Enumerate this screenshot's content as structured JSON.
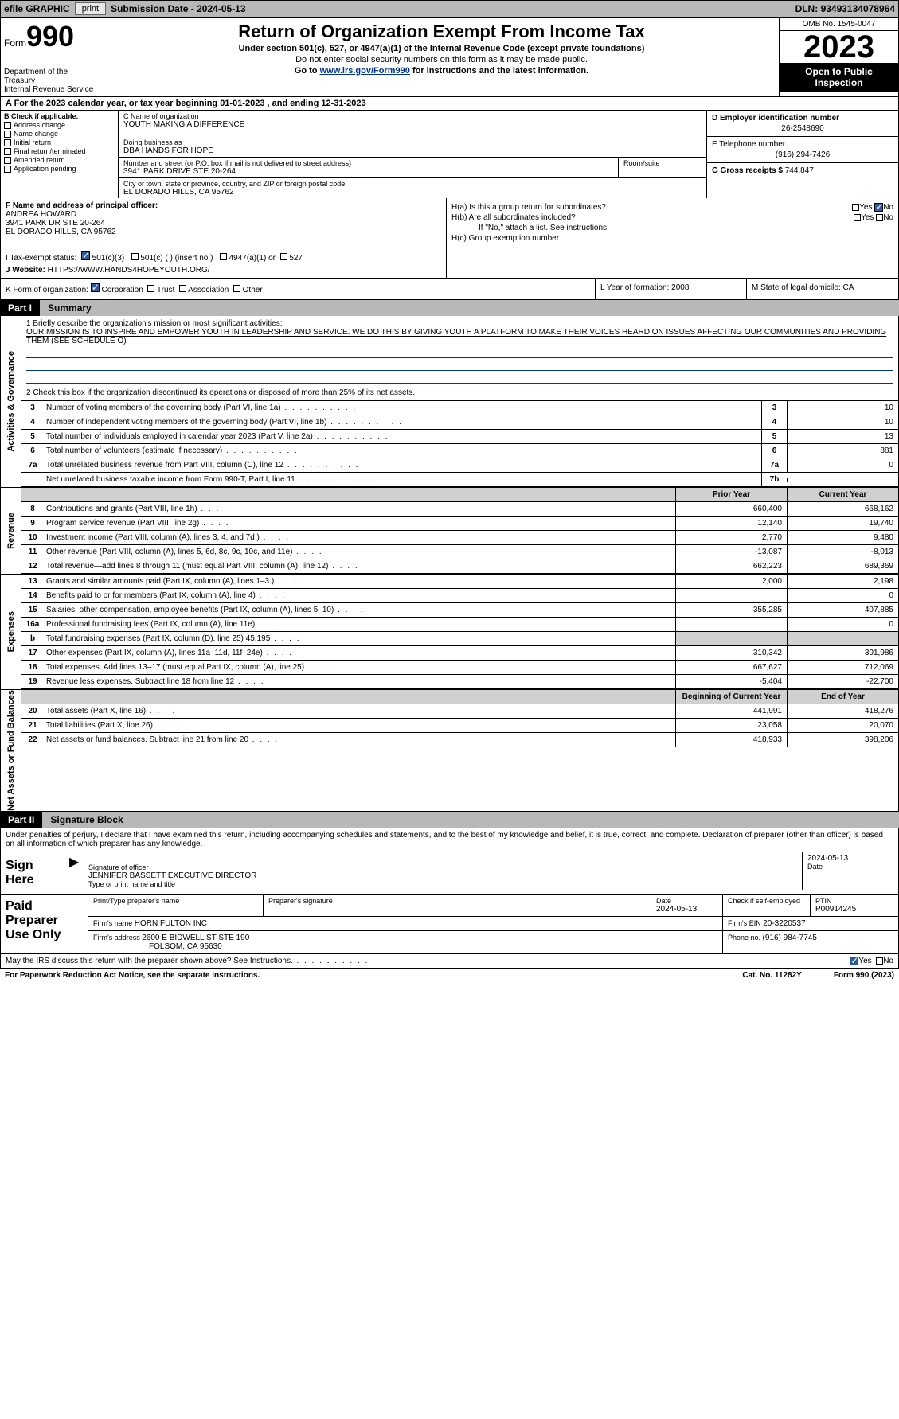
{
  "topbar": {
    "efile": "efile GRAPHIC",
    "print": "print",
    "sub_label": "Submission Date - ",
    "sub_date": "2024-05-13",
    "dln_label": "DLN: ",
    "dln": "93493134078964"
  },
  "header": {
    "form_word": "Form",
    "form_num": "990",
    "title": "Return of Organization Exempt From Income Tax",
    "subtitle": "Under section 501(c), 527, or 4947(a)(1) of the Internal Revenue Code (except private foundations)",
    "ssn_note": "Do not enter social security numbers on this form as it may be made public.",
    "goto_pre": "Go to ",
    "goto_link": "www.irs.gov/Form990",
    "goto_post": " for instructions and the latest information.",
    "omb": "OMB No. 1545-0047",
    "year": "2023",
    "open": "Open to Public Inspection",
    "dept": "Department of the Treasury",
    "irs": "Internal Revenue Service"
  },
  "period": {
    "text": "A   For the 2023 calendar year, or tax year beginning 01-01-2023    , and ending 12-31-2023"
  },
  "col_b": {
    "label": "B Check if applicable:",
    "addr": "Address change",
    "name": "Name change",
    "initial": "Initial return",
    "final": "Final return/terminated",
    "amended": "Amended return",
    "app": "Application pending"
  },
  "col_c": {
    "name_lbl": "C Name of organization",
    "name": "YOUTH MAKING A DIFFERENCE",
    "dba_lbl": "Doing business as",
    "dba": "DBA HANDS FOR HOPE",
    "street_lbl": "Number and street (or P.O. box if mail is not delivered to street address)",
    "street": "3941 PARK DRIVE STE 20-264",
    "suite_lbl": "Room/suite",
    "city_lbl": "City or town, state or province, country, and ZIP or foreign postal code",
    "city": "EL DORADO HILLS, CA   95762"
  },
  "col_de": {
    "d_lbl": "D Employer identification number",
    "d_val": "26-2548690",
    "e_lbl": "E Telephone number",
    "e_val": "(916) 294-7426",
    "g_lbl": "G Gross receipts $ ",
    "g_val": "744,847"
  },
  "fh": {
    "f_lbl": "F  Name and address of principal officer:",
    "f_name": "ANDREA HOWARD",
    "f_addr1": "3941 PARK DR STE 20-264",
    "f_addr2": "EL DORADO HILLS, CA  95762",
    "ha": "H(a)  Is this a group return for subordinates?",
    "hb": "H(b)  Are all subordinates included?",
    "hb_note": "If \"No,\" attach a list. See instructions.",
    "hc": "H(c)  Group exemption number  ",
    "yes": "Yes",
    "no": "No"
  },
  "ijk": {
    "i_lbl": "I    Tax-exempt status:",
    "i_501c3": "501(c)(3)",
    "i_501c": "501(c) (  ) (insert no.)",
    "i_4947": "4947(a)(1) or",
    "i_527": "527",
    "j_lbl": "J   Website: ",
    "j_val": "HTTPS://WWW.HANDS4HOPEYOUTH.ORG/"
  },
  "klm": {
    "k_lbl": "K Form of organization:",
    "k_corp": "Corporation",
    "k_trust": "Trust",
    "k_assoc": "Association",
    "k_other": "Other",
    "l_lbl": "L Year of formation: ",
    "l_val": "2008",
    "m_lbl": "M State of legal domicile: ",
    "m_val": "CA"
  },
  "part1": {
    "num": "Part I",
    "title": "Summary"
  },
  "mission": {
    "q": "1   Briefly describe the organization's mission or most significant activities:",
    "text": "OUR MISSION IS TO INSPIRE AND EMPOWER YOUTH IN LEADERSHIP AND SERVICE. WE DO THIS BY GIVING YOUTH A PLATFORM TO MAKE THEIR VOICES HEARD ON ISSUES AFFECTING OUR COMMUNITIES AND PROVIDING THEM (SEE SCHEDULE O)",
    "q2": "2    Check this box        if the organization discontinued its operations or disposed of more than 25% of its net assets."
  },
  "sides": {
    "ag": "Activities & Governance",
    "rev": "Revenue",
    "exp": "Expenses",
    "na": "Net Assets or Fund Balances"
  },
  "rows_ag": [
    {
      "n": "3",
      "desc": "Number of voting members of the governing body (Part VI, line 1a)",
      "box": "3",
      "val": "10"
    },
    {
      "n": "4",
      "desc": "Number of independent voting members of the governing body (Part VI, line 1b)",
      "box": "4",
      "val": "10"
    },
    {
      "n": "5",
      "desc": "Total number of individuals employed in calendar year 2023 (Part V, line 2a)",
      "box": "5",
      "val": "13"
    },
    {
      "n": "6",
      "desc": "Total number of volunteers (estimate if necessary)",
      "box": "6",
      "val": "881"
    },
    {
      "n": "7a",
      "desc": "Total unrelated business revenue from Part VIII, column (C), line 12",
      "box": "7a",
      "val": "0"
    },
    {
      "n": "",
      "desc": "Net unrelated business taxable income from Form 990-T, Part I, line 11",
      "box": "7b",
      "val": ""
    }
  ],
  "hdr_prior": "Prior Year",
  "hdr_curr": "Current Year",
  "rows_rev": [
    {
      "n": "8",
      "desc": "Contributions and grants (Part VIII, line 1h)",
      "c1": "660,400",
      "c2": "668,162"
    },
    {
      "n": "9",
      "desc": "Program service revenue (Part VIII, line 2g)",
      "c1": "12,140",
      "c2": "19,740"
    },
    {
      "n": "10",
      "desc": "Investment income (Part VIII, column (A), lines 3, 4, and 7d )",
      "c1": "2,770",
      "c2": "9,480"
    },
    {
      "n": "11",
      "desc": "Other revenue (Part VIII, column (A), lines 5, 6d, 8c, 9c, 10c, and 11e)",
      "c1": "-13,087",
      "c2": "-8,013"
    },
    {
      "n": "12",
      "desc": "Total revenue—add lines 8 through 11 (must equal Part VIII, column (A), line 12)",
      "c1": "662,223",
      "c2": "689,369"
    }
  ],
  "rows_exp": [
    {
      "n": "13",
      "desc": "Grants and similar amounts paid (Part IX, column (A), lines 1–3 )",
      "c1": "2,000",
      "c2": "2,198"
    },
    {
      "n": "14",
      "desc": "Benefits paid to or for members (Part IX, column (A), line 4)",
      "c1": "",
      "c2": "0"
    },
    {
      "n": "15",
      "desc": "Salaries, other compensation, employee benefits (Part IX, column (A), lines 5–10)",
      "c1": "355,285",
      "c2": "407,885"
    },
    {
      "n": "16a",
      "desc": "Professional fundraising fees (Part IX, column (A), line 11e)",
      "c1": "",
      "c2": "0"
    },
    {
      "n": "b",
      "desc": "Total fundraising expenses (Part IX, column (D), line 25) 45,195",
      "c1": "",
      "c2": "",
      "grey": true
    },
    {
      "n": "17",
      "desc": "Other expenses (Part IX, column (A), lines 11a–11d, 11f–24e)",
      "c1": "310,342",
      "c2": "301,986"
    },
    {
      "n": "18",
      "desc": "Total expenses. Add lines 13–17 (must equal Part IX, column (A), line 25)",
      "c1": "667,627",
      "c2": "712,069"
    },
    {
      "n": "19",
      "desc": "Revenue less expenses. Subtract line 18 from line 12",
      "c1": "-5,404",
      "c2": "-22,700"
    }
  ],
  "hdr_boy": "Beginning of Current Year",
  "hdr_eoy": "End of Year",
  "rows_na": [
    {
      "n": "20",
      "desc": "Total assets (Part X, line 16)",
      "c1": "441,991",
      "c2": "418,276"
    },
    {
      "n": "21",
      "desc": "Total liabilities (Part X, line 26)",
      "c1": "23,058",
      "c2": "20,070"
    },
    {
      "n": "22",
      "desc": "Net assets or fund balances. Subtract line 21 from line 20",
      "c1": "418,933",
      "c2": "398,206"
    }
  ],
  "part2": {
    "num": "Part II",
    "title": "Signature Block"
  },
  "sig": {
    "decl": "Under penalties of perjury, I declare that I have examined this return, including accompanying schedules and statements, and to the best of my knowledge and belief, it is true, correct, and complete. Declaration of preparer (other than officer) is based on all information of which preparer has any knowledge.",
    "sign_here": "Sign Here",
    "sig_officer": "Signature of officer",
    "officer": "JENNIFER BASSETT  EXECUTIVE DIRECTOR",
    "type_name": "Type or print name and title",
    "date_lbl": "Date",
    "date": "2024-05-13"
  },
  "paid": {
    "lbl": "Paid Preparer Use Only",
    "print_name": "Print/Type preparer's name",
    "prep_sig": "Preparer's signature",
    "date_lbl": "Date",
    "date": "2024-05-13",
    "check_lbl": "Check        if self-employed",
    "ptin_lbl": "PTIN",
    "ptin": "P00914245",
    "firm_name_lbl": "Firm's name    ",
    "firm_name": "HORN FULTON INC",
    "firm_ein_lbl": "Firm's EIN  ",
    "firm_ein": "20-3220537",
    "firm_addr_lbl": "Firm's address ",
    "firm_addr": "2600 E BIDWELL ST STE 190",
    "firm_city": "FOLSOM, CA  95630",
    "phone_lbl": "Phone no. ",
    "phone": "(916) 984-7745"
  },
  "irs_discuss": "May the IRS discuss this return with the preparer shown above? See Instructions.",
  "footer": {
    "pra": "For Paperwork Reduction Act Notice, see the separate instructions.",
    "cat": "Cat. No. 11282Y",
    "form": "Form 990 (2023)"
  }
}
